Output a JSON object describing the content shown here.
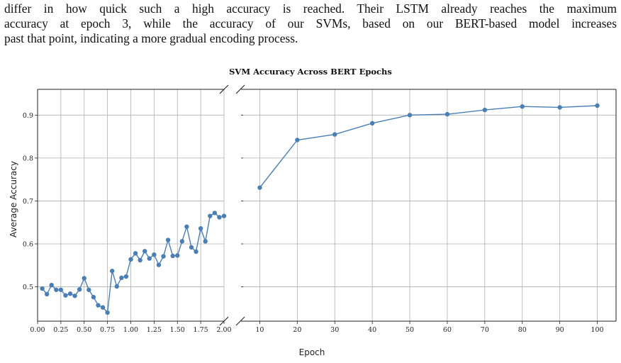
{
  "paragraph": {
    "lines": [
      "differ in how quick such a high accuracy is reached. Their LSTM already reaches the maximum",
      "accuracy at epoch 3, while the accuracy of our SVMs, based on our BERT-based model increases",
      "past that point, indicating a more gradual encoding process."
    ]
  },
  "chart_data": {
    "type": "line",
    "title": "SVM Accuracy Across BERT Epochs",
    "xlabel": "Epoch",
    "ylabel": "Average Accuracy",
    "grid": true,
    "broken_x_axis": true,
    "color": "#4a7fb5",
    "panels": [
      {
        "name": "left",
        "xlim": [
          0.0,
          2.0
        ],
        "ylim": [
          0.42,
          0.96
        ],
        "xticks": [
          "0.00",
          "0.25",
          "0.50",
          "0.75",
          "1.00",
          "1.25",
          "1.50",
          "1.75",
          "2.00"
        ],
        "yticks": [
          "0.5",
          "0.6",
          "0.7",
          "0.8",
          "0.9"
        ],
        "x": [
          0.05,
          0.1,
          0.15,
          0.2,
          0.25,
          0.3,
          0.35,
          0.4,
          0.45,
          0.5,
          0.55,
          0.6,
          0.65,
          0.7,
          0.75,
          0.8,
          0.85,
          0.9,
          0.95,
          1.0,
          1.05,
          1.1,
          1.15,
          1.2,
          1.25,
          1.3,
          1.35,
          1.4,
          1.45,
          1.5,
          1.55,
          1.6,
          1.65,
          1.7,
          1.75,
          1.8,
          1.85,
          1.9,
          1.95,
          2.0
        ],
        "y": [
          0.496,
          0.483,
          0.504,
          0.493,
          0.493,
          0.48,
          0.484,
          0.479,
          0.494,
          0.52,
          0.493,
          0.476,
          0.457,
          0.452,
          0.44,
          0.537,
          0.501,
          0.521,
          0.524,
          0.564,
          0.578,
          0.562,
          0.583,
          0.566,
          0.575,
          0.551,
          0.571,
          0.609,
          0.572,
          0.573,
          0.606,
          0.64,
          0.592,
          0.582,
          0.636,
          0.606,
          0.665,
          0.672,
          0.662,
          0.665
        ]
      },
      {
        "name": "right",
        "xlim": [
          5,
          105
        ],
        "ylim": [
          0.42,
          0.96
        ],
        "xticks": [
          "10",
          "20",
          "30",
          "40",
          "50",
          "60",
          "70",
          "80",
          "90",
          "100"
        ],
        "x": [
          10,
          20,
          30,
          40,
          50,
          60,
          70,
          80,
          90,
          100
        ],
        "y": [
          0.731,
          0.842,
          0.855,
          0.881,
          0.9,
          0.902,
          0.912,
          0.92,
          0.918,
          0.922
        ]
      }
    ]
  }
}
